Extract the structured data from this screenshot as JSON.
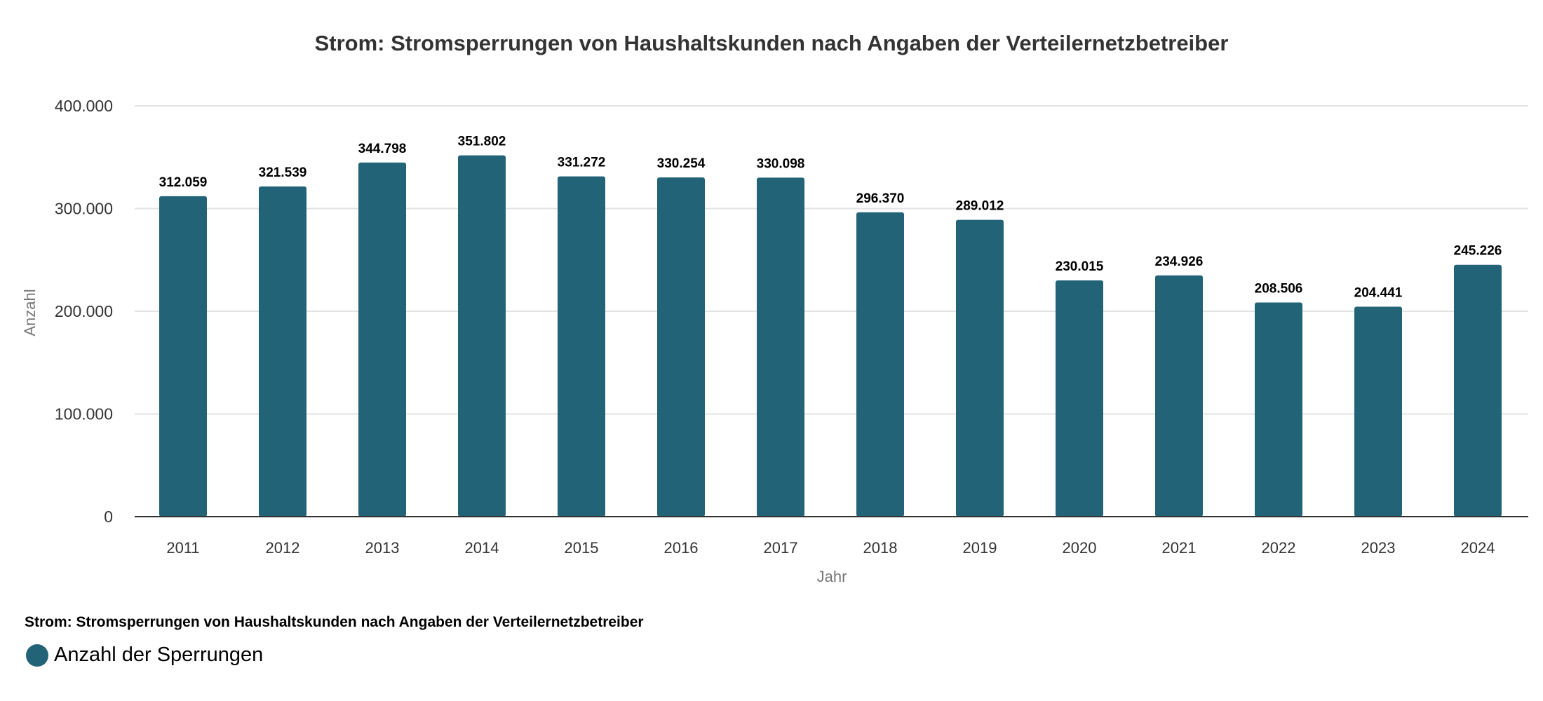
{
  "chart_data": {
    "type": "bar",
    "title": "Strom: Stromsperrungen von Haushaltskunden nach Angaben der Verteilernetzbetreiber",
    "xlabel": "Jahr",
    "ylabel": "Anzahl",
    "categories": [
      "2011",
      "2012",
      "2013",
      "2014",
      "2015",
      "2016",
      "2017",
      "2018",
      "2019",
      "2020",
      "2021",
      "2022",
      "2023",
      "2024"
    ],
    "series": [
      {
        "name": "Anzahl der Sperrungen",
        "values": [
          312059,
          321539,
          344798,
          351802,
          331272,
          330254,
          330098,
          296370,
          289012,
          230015,
          234926,
          208506,
          204441,
          245226
        ],
        "labels": [
          "312.059",
          "321.539",
          "344.798",
          "351.802",
          "331.272",
          "330.254",
          "330.098",
          "296.370",
          "289.012",
          "230.015",
          "234.926",
          "208.506",
          "204.441",
          "245.226"
        ],
        "color": "#226378"
      }
    ],
    "ylim": [
      0,
      400000
    ],
    "yticks": [
      0,
      100000,
      200000,
      300000,
      400000
    ],
    "ytick_labels": [
      "0",
      "100.000",
      "200.000",
      "300.000",
      "400.000"
    ],
    "grid": true,
    "legend_position": "bottom-left"
  },
  "footer": {
    "title": "Strom: Stromsperrungen von Haushaltskunden nach Angaben der Verteilernetzbetreiber",
    "legend_label": "Anzahl der Sperrungen"
  }
}
